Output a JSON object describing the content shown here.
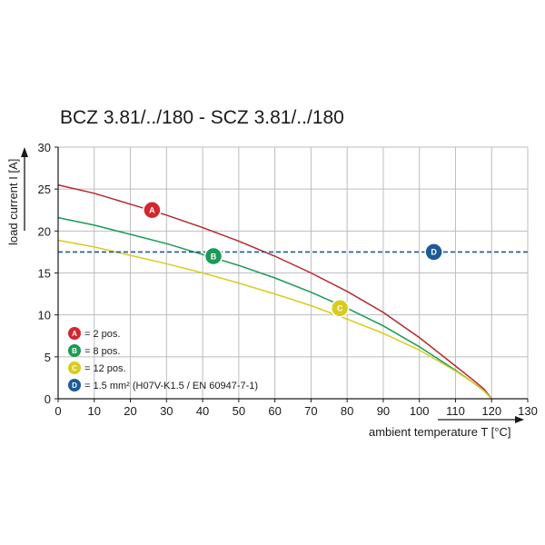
{
  "chart_data": {
    "type": "line",
    "title": "BCZ 3.81/../180 - SCZ 3.81/../180",
    "xlabel": "ambient temperature T [°C]",
    "ylabel": "load current I [A]",
    "xlim": [
      0,
      130
    ],
    "ylim": [
      0,
      30
    ],
    "xticks": [
      0,
      10,
      20,
      30,
      40,
      50,
      60,
      70,
      80,
      90,
      100,
      110,
      120,
      130
    ],
    "yticks": [
      0,
      5,
      10,
      15,
      20,
      25,
      30
    ],
    "grid": true,
    "series": [
      {
        "marker": "A",
        "color": "#b5272d",
        "style": "solid",
        "x": [
          0,
          10,
          20,
          30,
          40,
          50,
          60,
          70,
          80,
          90,
          100,
          110,
          115,
          118,
          120
        ],
        "y": [
          25.5,
          24.5,
          23.2,
          21.9,
          20.4,
          18.8,
          17.0,
          15.0,
          12.8,
          10.3,
          7.3,
          3.9,
          2.2,
          1.1,
          0
        ]
      },
      {
        "marker": "B",
        "color": "#1a9a56",
        "style": "solid",
        "x": [
          0,
          10,
          20,
          30,
          40,
          50,
          60,
          70,
          80,
          90,
          100,
          110,
          115,
          118,
          120
        ],
        "y": [
          21.6,
          20.7,
          19.6,
          18.5,
          17.2,
          15.9,
          14.4,
          12.7,
          10.8,
          8.7,
          6.2,
          3.4,
          1.9,
          0.9,
          0
        ]
      },
      {
        "marker": "C",
        "color": "#d9cc1e",
        "style": "solid",
        "x": [
          0,
          10,
          20,
          30,
          40,
          50,
          60,
          70,
          80,
          90,
          100,
          110,
          115,
          118,
          120
        ],
        "y": [
          18.9,
          18.1,
          17.1,
          16.1,
          15.0,
          13.8,
          12.5,
          11.1,
          9.5,
          7.8,
          5.8,
          3.3,
          1.9,
          0.9,
          0
        ]
      },
      {
        "marker": "D",
        "color": "#1d5a96",
        "style": "dashed",
        "x": [
          0,
          130
        ],
        "y": [
          17.5,
          17.5
        ]
      }
    ],
    "marker_positions": [
      {
        "letter": "A",
        "x": 26,
        "y": 22.5,
        "color": "#d2272e"
      },
      {
        "letter": "B",
        "x": 43,
        "y": 17.0,
        "color": "#1a9a56"
      },
      {
        "letter": "C",
        "x": 78,
        "y": 10.8,
        "color": "#d9cc1e"
      },
      {
        "letter": "D",
        "x": 104,
        "y": 17.5,
        "color": "#1d5a96"
      }
    ],
    "legend": {
      "placement": "bottom-left",
      "entries": [
        {
          "letter": "A",
          "color": "#d2272e",
          "text": "= 2 pos."
        },
        {
          "letter": "B",
          "color": "#1a9a56",
          "text": "= 8 pos."
        },
        {
          "letter": "C",
          "color": "#d9cc1e",
          "text": "= 12 pos."
        },
        {
          "letter": "D",
          "color": "#1d5a96",
          "text": "= 1.5 mm² (H07V-K1.5 / EN 60947-7-1)"
        }
      ]
    }
  }
}
